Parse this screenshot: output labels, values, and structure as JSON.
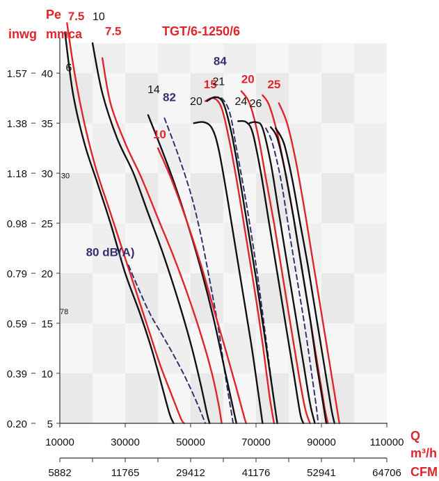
{
  "chart_data": {
    "type": "line",
    "title": "TGT/6-1250/6",
    "y_unit_left": "inwg",
    "y_unit_right_l1": "Pe",
    "y_unit_right_l2": "mmca",
    "x_unit_top_l1": "Q",
    "x_unit_top_l2": "m³/h",
    "x_unit_bottom": "CFM",
    "xlim": [
      10000,
      110000
    ],
    "ylim": [
      5,
      43
    ],
    "x_ticks": [
      "10000",
      "30000",
      "50000",
      "70000",
      "90000",
      "110000"
    ],
    "cfm_ticks": [
      "5882",
      "11765",
      "29412",
      "41176",
      "52941",
      "64706"
    ],
    "y_ticks": [
      "5",
      "10",
      "15",
      "20",
      "25",
      "30",
      "35",
      "40"
    ],
    "inwg_ticks": [
      "0.20",
      "0.39",
      "0.59",
      "0.79",
      "0.98",
      "1.18",
      "1.38",
      "1.57"
    ],
    "series": [
      {
        "name": "6",
        "style": "black",
        "points": [
          [
            11600,
            44
          ],
          [
            14000,
            38
          ],
          [
            17500,
            33
          ],
          [
            21500,
            29
          ],
          [
            25500,
            25
          ],
          [
            30000,
            20
          ],
          [
            34500,
            16
          ],
          [
            38000,
            12.5
          ],
          [
            41000,
            9
          ],
          [
            43500,
            6
          ],
          [
            44800,
            5
          ]
        ]
      },
      {
        "name": "7.5",
        "style": "red",
        "points": [
          [
            12200,
            45
          ],
          [
            14500,
            40
          ],
          [
            17500,
            35
          ],
          [
            21000,
            30.5
          ],
          [
            25000,
            26.5
          ],
          [
            29000,
            22.5
          ],
          [
            33000,
            18.5
          ],
          [
            37000,
            14.5
          ],
          [
            40500,
            11
          ],
          [
            44000,
            8
          ],
          [
            47000,
            5.5
          ],
          [
            48000,
            5
          ]
        ]
      },
      {
        "name": "10",
        "style": "black",
        "points": [
          [
            20000,
            43
          ],
          [
            23000,
            38
          ],
          [
            27500,
            33.5
          ],
          [
            32500,
            30
          ],
          [
            37000,
            26
          ],
          [
            41500,
            22
          ],
          [
            46000,
            17.5
          ],
          [
            50000,
            13
          ],
          [
            53000,
            9
          ],
          [
            55000,
            6
          ],
          [
            55800,
            5
          ]
        ]
      },
      {
        "name": "7.5",
        "style": "red",
        "points": [
          [
            23000,
            41.5
          ],
          [
            25500,
            37
          ],
          [
            30000,
            33
          ],
          [
            35000,
            29.5
          ],
          [
            40000,
            25.5
          ],
          [
            45000,
            21.5
          ],
          [
            49500,
            17.5
          ],
          [
            53500,
            13.5
          ],
          [
            56500,
            10
          ],
          [
            58500,
            7
          ],
          [
            59500,
            5
          ]
        ]
      },
      {
        "name": "80 dB(A)",
        "style": "navy",
        "points": [
          [
            31000,
            20.8
          ],
          [
            34000,
            18.5
          ],
          [
            37500,
            16
          ],
          [
            41000,
            14
          ],
          [
            44500,
            12
          ],
          [
            48500,
            9.5
          ],
          [
            52000,
            7
          ],
          [
            54500,
            5
          ]
        ]
      },
      {
        "name": "82",
        "style": "navy",
        "points": [
          [
            42000,
            35.5
          ],
          [
            46000,
            32
          ],
          [
            50000,
            28
          ],
          [
            53000,
            24
          ],
          [
            56000,
            19
          ],
          [
            58500,
            14.5
          ],
          [
            60500,
            10
          ],
          [
            62500,
            6
          ],
          [
            63000,
            5
          ]
        ]
      },
      {
        "name": "14",
        "style": "black",
        "points": [
          [
            37000,
            35.8
          ],
          [
            41000,
            32.5
          ],
          [
            45000,
            29
          ],
          [
            49500,
            24.5
          ],
          [
            53500,
            20
          ],
          [
            57000,
            15.5
          ],
          [
            60000,
            11
          ],
          [
            62000,
            8
          ],
          [
            64000,
            5
          ]
        ]
      },
      {
        "name": "10",
        "style": "red",
        "points": [
          [
            40000,
            32.5
          ],
          [
            44000,
            29.5
          ],
          [
            48500,
            25.5
          ],
          [
            53000,
            21
          ],
          [
            57000,
            16.5
          ],
          [
            61000,
            12
          ],
          [
            64000,
            8.5
          ],
          [
            66500,
            5.5
          ],
          [
            67000,
            5
          ]
        ]
      },
      {
        "name": "20",
        "style": "black",
        "points": [
          [
            51000,
            35
          ],
          [
            54000,
            35.1
          ],
          [
            56500,
            34.5
          ],
          [
            58500,
            32.5
          ],
          [
            61000,
            28
          ],
          [
            63500,
            23
          ],
          [
            66000,
            18
          ],
          [
            68500,
            13
          ],
          [
            70500,
            8.5
          ],
          [
            72000,
            5
          ]
        ]
      },
      {
        "name": "15",
        "style": "red",
        "points": [
          [
            54500,
            37.2
          ],
          [
            57000,
            37.5
          ],
          [
            59500,
            36.5
          ],
          [
            62000,
            33
          ],
          [
            64500,
            28.5
          ],
          [
            67000,
            23.5
          ],
          [
            69500,
            18.5
          ],
          [
            72000,
            13
          ],
          [
            74000,
            8
          ],
          [
            75500,
            5
          ]
        ]
      },
      {
        "name": "84",
        "style": "navy",
        "points": [
          [
            57000,
            37.5
          ],
          [
            59500,
            37.5
          ],
          [
            62000,
            36
          ],
          [
            64000,
            32.5
          ],
          [
            66500,
            28
          ],
          [
            69000,
            23
          ],
          [
            71000,
            18.5
          ],
          [
            73000,
            13.5
          ],
          [
            75000,
            8.5
          ],
          [
            76500,
            5
          ]
        ]
      },
      {
        "name": "21",
        "style": "black",
        "points": [
          [
            55000,
            37.2
          ],
          [
            57500,
            37.6
          ],
          [
            60000,
            37
          ],
          [
            62500,
            34
          ],
          [
            65000,
            29.5
          ],
          [
            67500,
            24.5
          ],
          [
            70000,
            19.5
          ],
          [
            72500,
            14
          ],
          [
            74500,
            9.5
          ],
          [
            76500,
            5
          ]
        ]
      },
      {
        "name": "24",
        "style": "black",
        "points": [
          [
            64500,
            35.2
          ],
          [
            67000,
            35.1
          ],
          [
            69000,
            34
          ],
          [
            71500,
            30
          ],
          [
            74000,
            25
          ],
          [
            76500,
            20
          ],
          [
            79000,
            15
          ],
          [
            81500,
            10
          ],
          [
            83500,
            6
          ],
          [
            84500,
            5
          ]
        ]
      },
      {
        "name": "20",
        "style": "red",
        "points": [
          [
            65500,
            38.2
          ],
          [
            68000,
            37
          ],
          [
            70500,
            34
          ],
          [
            73000,
            29.5
          ],
          [
            75500,
            25
          ],
          [
            78000,
            20
          ],
          [
            80500,
            15
          ],
          [
            83000,
            10
          ],
          [
            85000,
            6.5
          ],
          [
            86500,
            5
          ]
        ]
      },
      {
        "name": "26",
        "style": "black",
        "points": [
          [
            68000,
            35
          ],
          [
            70000,
            35.1
          ],
          [
            72000,
            34.5
          ],
          [
            74500,
            31
          ],
          [
            77000,
            26
          ],
          [
            79500,
            21
          ],
          [
            82000,
            16
          ],
          [
            84500,
            11
          ],
          [
            86500,
            7
          ],
          [
            88000,
            5
          ]
        ]
      },
      {
        "name": "25",
        "style": "red",
        "points": [
          [
            72000,
            37.8
          ],
          [
            74000,
            36.8
          ],
          [
            76500,
            34
          ],
          [
            79000,
            30
          ],
          [
            81500,
            25.5
          ],
          [
            84000,
            20.5
          ],
          [
            86500,
            15.5
          ],
          [
            89000,
            10.5
          ],
          [
            91000,
            6.5
          ],
          [
            92000,
            5
          ]
        ]
      },
      {
        "name": "",
        "style": "navy",
        "points": [
          [
            73000,
            34.5
          ],
          [
            75000,
            33
          ],
          [
            77500,
            29.5
          ],
          [
            80000,
            24.5
          ],
          [
            82500,
            19.5
          ],
          [
            85000,
            14.5
          ],
          [
            87000,
            10
          ],
          [
            88500,
            6.5
          ],
          [
            89000,
            5
          ]
        ]
      },
      {
        "name": "",
        "style": "black",
        "points": [
          [
            74500,
            34.6
          ],
          [
            76500,
            33.5
          ],
          [
            79000,
            30
          ],
          [
            81500,
            25.5
          ],
          [
            84000,
            20.5
          ],
          [
            86500,
            15.5
          ],
          [
            88500,
            11
          ],
          [
            90500,
            7
          ],
          [
            91500,
            5
          ]
        ]
      },
      {
        "name": "",
        "style": "black",
        "points": [
          [
            76000,
            34.5
          ],
          [
            78500,
            33
          ],
          [
            81000,
            29.5
          ],
          [
            83500,
            25
          ],
          [
            86000,
            20.5
          ],
          [
            88500,
            15.5
          ],
          [
            91000,
            10.5
          ],
          [
            93000,
            6.5
          ],
          [
            94000,
            5
          ]
        ]
      },
      {
        "name": "",
        "style": "red",
        "points": [
          [
            77000,
            37
          ],
          [
            79500,
            35
          ],
          [
            82000,
            31.5
          ],
          [
            84500,
            27
          ],
          [
            87000,
            22
          ],
          [
            89500,
            17
          ],
          [
            92000,
            12
          ],
          [
            94000,
            8
          ],
          [
            95500,
            5
          ]
        ]
      }
    ],
    "labels": [
      {
        "text": "6",
        "style": "black",
        "x": 11800,
        "y": 40.2
      },
      {
        "text": "7.5",
        "style": "red",
        "x": 12500,
        "y": 45.3
      },
      {
        "text": "10",
        "style": "black",
        "x": 20000,
        "y": 45.3
      },
      {
        "text": "7.5",
        "style": "red",
        "x": 23800,
        "y": 43.8
      },
      {
        "text": "14",
        "style": "black",
        "x": 36800,
        "y": 38.0
      },
      {
        "text": "82",
        "style": "navy",
        "x": 41500,
        "y": 37.2
      },
      {
        "text": "10",
        "style": "red",
        "x": 38500,
        "y": 33.5
      },
      {
        "text": "20",
        "style": "black",
        "x": 49800,
        "y": 36.8
      },
      {
        "text": "15",
        "style": "red",
        "x": 54000,
        "y": 38.5
      },
      {
        "text": "84",
        "style": "navy",
        "x": 57000,
        "y": 40.8
      },
      {
        "text": "21",
        "style": "black",
        "x": 56700,
        "y": 38.8
      },
      {
        "text": "20",
        "style": "red",
        "x": 65500,
        "y": 39.0
      },
      {
        "text": "24",
        "style": "black",
        "x": 63500,
        "y": 36.8
      },
      {
        "text": "25",
        "style": "red",
        "x": 73500,
        "y": 38.5
      },
      {
        "text": "26",
        "style": "black",
        "x": 68000,
        "y": 36.6
      },
      {
        "text": "80 dB(A)",
        "style": "navy",
        "x": 18000,
        "y": 21.7
      },
      {
        "text": "30",
        "style": "black",
        "x": 10400,
        "y": 29.5
      },
      {
        "text": "78",
        "style": "black",
        "x": 10000,
        "y": 15.9
      }
    ],
    "colors": {
      "red": "#e0242b",
      "black": "#111111",
      "navy": "#34306e",
      "grid_dark": "#e9e9e9",
      "grid_light": "#f6f6f6"
    }
  }
}
